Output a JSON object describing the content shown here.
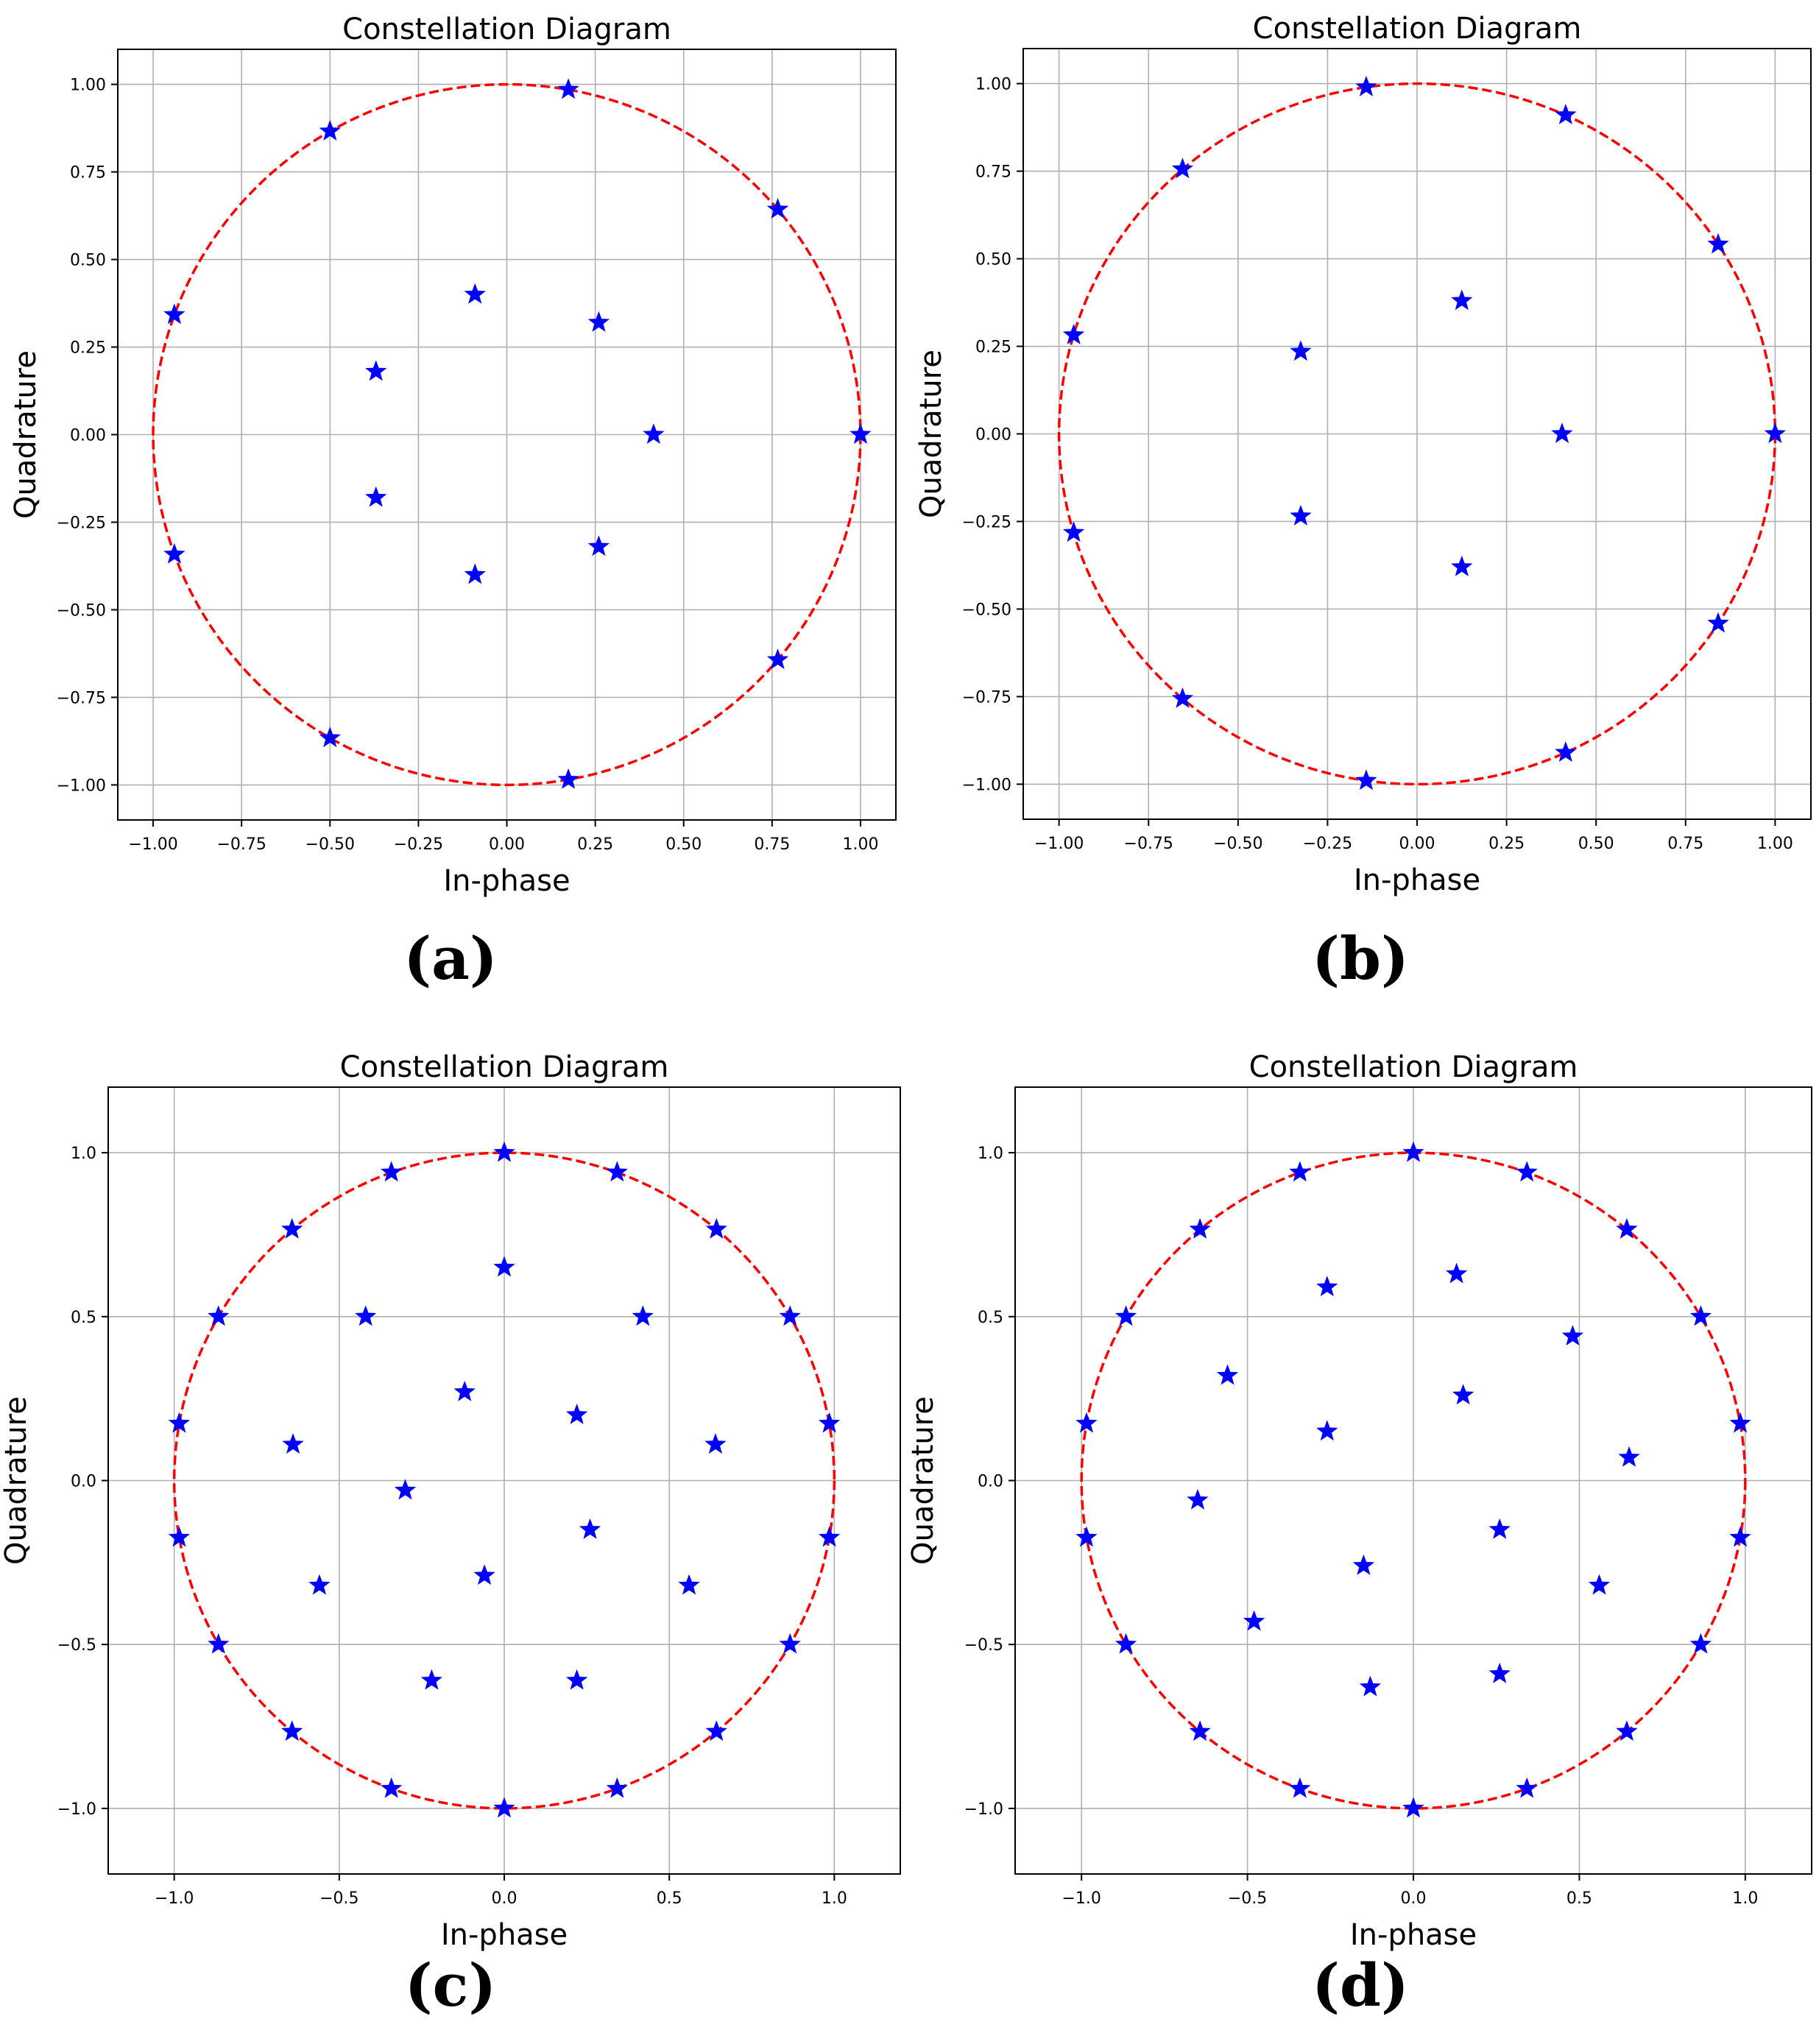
{
  "colors": {
    "marker": "#0000ff",
    "circle": "#ff0000",
    "grid": "#b0b0b0",
    "axes": "#000000"
  },
  "chart_data": [
    {
      "type": "scatter",
      "panel_label": "(a)",
      "title": "Constellation Diagram",
      "xlabel": "In-phase",
      "ylabel": "Quadrature",
      "xlim": [
        -1.1,
        1.1
      ],
      "ylim": [
        -1.1,
        1.1
      ],
      "xticks": [
        -1.0,
        -0.75,
        -0.5,
        -0.25,
        0.0,
        0.25,
        0.5,
        0.75,
        1.0
      ],
      "xtick_labels": [
        "−1.00",
        "−0.75",
        "−0.50",
        "−0.25",
        "0.00",
        "0.25",
        "0.50",
        "0.75",
        "1.00"
      ],
      "yticks": [
        -1.0,
        -0.75,
        -0.5,
        -0.25,
        0.0,
        0.25,
        0.5,
        0.75,
        1.0
      ],
      "ytick_labels": [
        "−1.00",
        "−0.75",
        "−0.50",
        "−0.25",
        "0.00",
        "0.25",
        "0.50",
        "0.75",
        "1.00"
      ],
      "grid": true,
      "unit_circle": true,
      "marker": "star",
      "points": [
        [
          1.0,
          0.0
        ],
        [
          0.766,
          0.643
        ],
        [
          0.174,
          0.985
        ],
        [
          -0.5,
          0.866
        ],
        [
          -0.94,
          0.342
        ],
        [
          -0.94,
          -0.342
        ],
        [
          -0.5,
          -0.866
        ],
        [
          0.174,
          -0.985
        ],
        [
          0.766,
          -0.643
        ],
        [
          0.415,
          0.0
        ],
        [
          0.26,
          0.32
        ],
        [
          -0.09,
          0.4
        ],
        [
          -0.37,
          0.18
        ],
        [
          -0.37,
          -0.18
        ],
        [
          -0.09,
          -0.4
        ],
        [
          0.26,
          -0.32
        ]
      ]
    },
    {
      "type": "scatter",
      "panel_label": "(b)",
      "title": "Constellation Diagram",
      "xlabel": "In-phase",
      "ylabel": "Quadrature",
      "xlim": [
        -1.1,
        1.1
      ],
      "ylim": [
        -1.1,
        1.1
      ],
      "xticks": [
        -1.0,
        -0.75,
        -0.5,
        -0.25,
        0.0,
        0.25,
        0.5,
        0.75,
        1.0
      ],
      "xtick_labels": [
        "−1.00",
        "−0.75",
        "−0.50",
        "−0.25",
        "0.00",
        "0.25",
        "0.50",
        "0.75",
        "1.00"
      ],
      "yticks": [
        -1.0,
        -0.75,
        -0.5,
        -0.25,
        0.0,
        0.25,
        0.5,
        0.75,
        1.0
      ],
      "ytick_labels": [
        "−1.00",
        "−0.75",
        "−0.50",
        "−0.25",
        "0.00",
        "0.25",
        "0.50",
        "0.75",
        "1.00"
      ],
      "grid": true,
      "unit_circle": true,
      "marker": "star",
      "points": [
        [
          1.0,
          0.0
        ],
        [
          0.841,
          0.541
        ],
        [
          0.415,
          0.91
        ],
        [
          -0.142,
          0.99
        ],
        [
          -0.655,
          0.756
        ],
        [
          -0.959,
          0.282
        ],
        [
          -0.959,
          -0.282
        ],
        [
          -0.655,
          -0.756
        ],
        [
          -0.142,
          -0.99
        ],
        [
          0.415,
          -0.91
        ],
        [
          0.841,
          -0.541
        ],
        [
          0.405,
          0.0
        ],
        [
          0.125,
          0.38
        ],
        [
          -0.325,
          0.235
        ],
        [
          -0.325,
          -0.235
        ],
        [
          0.125,
          -0.38
        ]
      ]
    },
    {
      "type": "scatter",
      "panel_label": "(c)",
      "title": "Constellation Diagram",
      "xlabel": "In-phase",
      "ylabel": "Quadrature",
      "xlim": [
        -1.2,
        1.2
      ],
      "ylim": [
        -1.2,
        1.2
      ],
      "xticks": [
        -1.0,
        -0.5,
        0.0,
        0.5,
        1.0
      ],
      "xtick_labels": [
        "−1.0",
        "−0.5",
        "0.0",
        "0.5",
        "1.0"
      ],
      "yticks": [
        -1.0,
        -0.5,
        0.0,
        0.5,
        1.0
      ],
      "ytick_labels": [
        "−1.0",
        "−0.5",
        "0.0",
        "0.5",
        "1.0"
      ],
      "grid": true,
      "unit_circle": true,
      "marker": "star",
      "points": [
        [
          0.0,
          1.0
        ],
        [
          0.342,
          0.94
        ],
        [
          0.643,
          0.766
        ],
        [
          0.866,
          0.5
        ],
        [
          0.985,
          0.174
        ],
        [
          0.985,
          -0.174
        ],
        [
          0.866,
          -0.5
        ],
        [
          0.643,
          -0.766
        ],
        [
          0.342,
          -0.94
        ],
        [
          0.0,
          -1.0
        ],
        [
          -0.342,
          -0.94
        ],
        [
          -0.643,
          -0.766
        ],
        [
          -0.866,
          -0.5
        ],
        [
          -0.985,
          -0.174
        ],
        [
          -0.985,
          0.174
        ],
        [
          -0.866,
          0.5
        ],
        [
          -0.643,
          0.766
        ],
        [
          -0.342,
          0.94
        ],
        [
          0.0,
          0.65
        ],
        [
          0.42,
          0.5
        ],
        [
          -0.42,
          0.5
        ],
        [
          0.64,
          0.11
        ],
        [
          -0.64,
          0.11
        ],
        [
          0.56,
          -0.32
        ],
        [
          -0.56,
          -0.32
        ],
        [
          0.22,
          -0.61
        ],
        [
          -0.22,
          -0.61
        ],
        [
          -0.12,
          0.27
        ],
        [
          0.22,
          0.2
        ],
        [
          -0.3,
          -0.03
        ],
        [
          0.26,
          -0.15
        ],
        [
          -0.06,
          -0.29
        ]
      ]
    },
    {
      "type": "scatter",
      "panel_label": "(d)",
      "title": "Constellation Diagram",
      "xlabel": "In-phase",
      "ylabel": "Quadrature",
      "xlim": [
        -1.2,
        1.2
      ],
      "ylim": [
        -1.2,
        1.2
      ],
      "xticks": [
        -1.0,
        -0.5,
        0.0,
        0.5,
        1.0
      ],
      "xtick_labels": [
        "−1.0",
        "−0.5",
        "0.0",
        "0.5",
        "1.0"
      ],
      "yticks": [
        -1.0,
        -0.5,
        0.0,
        0.5,
        1.0
      ],
      "ytick_labels": [
        "−1.0",
        "−0.5",
        "0.0",
        "0.5",
        "1.0"
      ],
      "grid": true,
      "unit_circle": true,
      "marker": "star",
      "points": [
        [
          0.0,
          1.0
        ],
        [
          0.342,
          0.94
        ],
        [
          0.643,
          0.766
        ],
        [
          0.866,
          0.5
        ],
        [
          0.985,
          0.174
        ],
        [
          0.985,
          -0.174
        ],
        [
          0.866,
          -0.5
        ],
        [
          0.643,
          -0.766
        ],
        [
          0.342,
          -0.94
        ],
        [
          0.0,
          -1.0
        ],
        [
          -0.342,
          -0.94
        ],
        [
          -0.643,
          -0.766
        ],
        [
          -0.866,
          -0.5
        ],
        [
          -0.985,
          -0.174
        ],
        [
          -0.985,
          0.174
        ],
        [
          -0.866,
          0.5
        ],
        [
          -0.643,
          0.766
        ],
        [
          -0.342,
          0.94
        ],
        [
          -0.26,
          0.59
        ],
        [
          0.13,
          0.63
        ],
        [
          0.48,
          0.44
        ],
        [
          -0.56,
          0.32
        ],
        [
          0.15,
          0.26
        ],
        [
          -0.26,
          0.15
        ],
        [
          0.65,
          0.07
        ],
        [
          -0.65,
          -0.06
        ],
        [
          0.26,
          -0.15
        ],
        [
          -0.15,
          -0.26
        ],
        [
          0.56,
          -0.32
        ],
        [
          -0.48,
          -0.43
        ],
        [
          0.26,
          -0.59
        ],
        [
          -0.13,
          -0.63
        ]
      ]
    }
  ]
}
